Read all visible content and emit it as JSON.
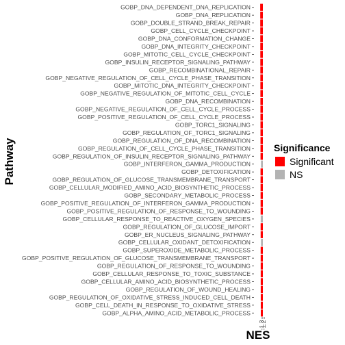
{
  "chart_data": {
    "type": "bar",
    "orientation": "horizontal",
    "xlabel": "NES",
    "ylabel": "Pathway",
    "x_tick_labels": [
      "-1.3",
      "-1.2"
    ],
    "legend": {
      "title": "Significance",
      "position": "right",
      "entries": [
        {
          "label": "Significant",
          "color": "#ff0000"
        },
        {
          "label": "NS",
          "color": "#b3b3b3"
        }
      ]
    },
    "categories": [
      "GOBP_DNA_DEPENDENT_DNA_REPLICATION",
      "GOBP_DNA_REPLICATION",
      "GOBP_DOUBLE_STRAND_BREAK_REPAIR",
      "GOBP_CELL_CYCLE_CHECKPOINT",
      "GOBP_DNA_CONFORMATION_CHANGE",
      "GOBP_DNA_INTEGRITY_CHECKPOINT",
      "GOBP_MITOTIC_CELL_CYCLE_CHECKPOINT",
      "GOBP_INSULIN_RECEPTOR_SIGNALING_PATHWAY",
      "GOBP_RECOMBINATIONAL_REPAIR",
      "GOBP_NEGATIVE_REGULATION_OF_CELL_CYCLE_PHASE_TRANSITION",
      "GOBP_MITOTIC_DNA_INTEGRITY_CHECKPOINT",
      "GOBP_NEGATIVE_REGULATION_OF_MITOTIC_CELL_CYCLE",
      "GOBP_DNA_RECOMBINATION",
      "GOBP_NEGATIVE_REGULATION_OF_CELL_CYCLE_PROCESS",
      "GOBP_POSITIVE_REGULATION_OF_CELL_CYCLE_PROCESS",
      "GOBP_TORC1_SIGNALING",
      "GOBP_REGULATION_OF_TORC1_SIGNALING",
      "GOBP_REGULATION_OF_DNA_RECOMBINATION",
      "GOBP_REGULATION_OF_CELL_CYCLE_PHASE_TRANSITION",
      "GOBP_REGULATION_OF_INSULIN_RECEPTOR_SIGNALING_PATHWAY",
      "GOBP_INTERFERON_GAMMA_PRODUCTION",
      "GOBP_DETOXIFICATION",
      "GOBP_REGULATION_OF_GLUCOSE_TRANSMEMBRANE_TRANSPORT",
      "GOBP_CELLULAR_MODIFIED_AMINO_ACID_BIOSYNTHETIC_PROCESS",
      "GOBP_SECONDARY_METABOLIC_PROCESS",
      "GOBP_POSITIVE_REGULATION_OF_INTERFERON_GAMMA_PRODUCTION",
      "GOBP_POSITIVE_REGULATION_OF_RESPONSE_TO_WOUNDING",
      "GOBP_CELLULAR_RESPONSE_TO_REACTIVE_OXYGEN_SPECIES",
      "GOBP_REGULATION_OF_GLUCOSE_IMPORT",
      "GOBP_ER_NUCLEUS_SIGNALING_PATHWAY",
      "GOBP_CELLULAR_OXIDANT_DETOXIFICATION",
      "GOBP_SUPEROXIDE_METABOLIC_PROCESS",
      "GOBP_POSITIVE_REGULATION_OF_GLUCOSE_TRANSMEMBRANE_TRANSPORT",
      "GOBP_REGULATION_OF_RESPONSE_TO_WOUNDING",
      "GOBP_CELLULAR_RESPONSE_TO_TOXIC_SUBSTANCE",
      "GOBP_CELLULAR_AMINO_ACID_BIOSYNTHETIC_PROCESS",
      "GOBP_REGULATION_OF_WOUND_HEALING",
      "GOBP_REGULATION_OF_OXIDATIVE_STRESS_INDUCED_CELL_DEATH",
      "GOBP_CELL_DEATH_IN_RESPONSE_TO_OXIDATIVE_STRESS",
      "GOBP_ALPHA_AMINO_ACID_METABOLIC_PROCESS"
    ],
    "values": [
      -1.62,
      -1.6,
      -1.59,
      -1.58,
      -1.57,
      -1.56,
      -1.55,
      -1.54,
      -1.53,
      -1.52,
      -1.51,
      -1.5,
      -1.49,
      -1.48,
      -1.47,
      -1.46,
      -1.45,
      -1.44,
      -1.43,
      -1.42,
      -1.15,
      -1.42,
      -1.41,
      -1.4,
      -1.39,
      -1.38,
      -1.37,
      -1.3,
      -1.36,
      -1.35,
      -1.16,
      -1.34,
      -1.33,
      -1.32,
      -1.31,
      -1.3,
      -1.29,
      -1.28,
      -1.27,
      -1.26
    ],
    "significance": [
      "Significant",
      "Significant",
      "Significant",
      "Significant",
      "Significant",
      "Significant",
      "Significant",
      "Significant",
      "Significant",
      "Significant",
      "Significant",
      "Significant",
      "Significant",
      "Significant",
      "Significant",
      "Significant",
      "Significant",
      "Significant",
      "Significant",
      "Significant",
      "NS",
      "Significant",
      "Significant",
      "Significant",
      "Significant",
      "Significant",
      "Significant",
      "NS",
      "Significant",
      "Significant",
      "NS",
      "Significant",
      "Significant",
      "Significant",
      "Significant",
      "Significant",
      "Significant",
      "Significant",
      "Significant",
      "Significant"
    ],
    "xlim": [
      -1.75,
      -1.0
    ],
    "grid": false
  }
}
